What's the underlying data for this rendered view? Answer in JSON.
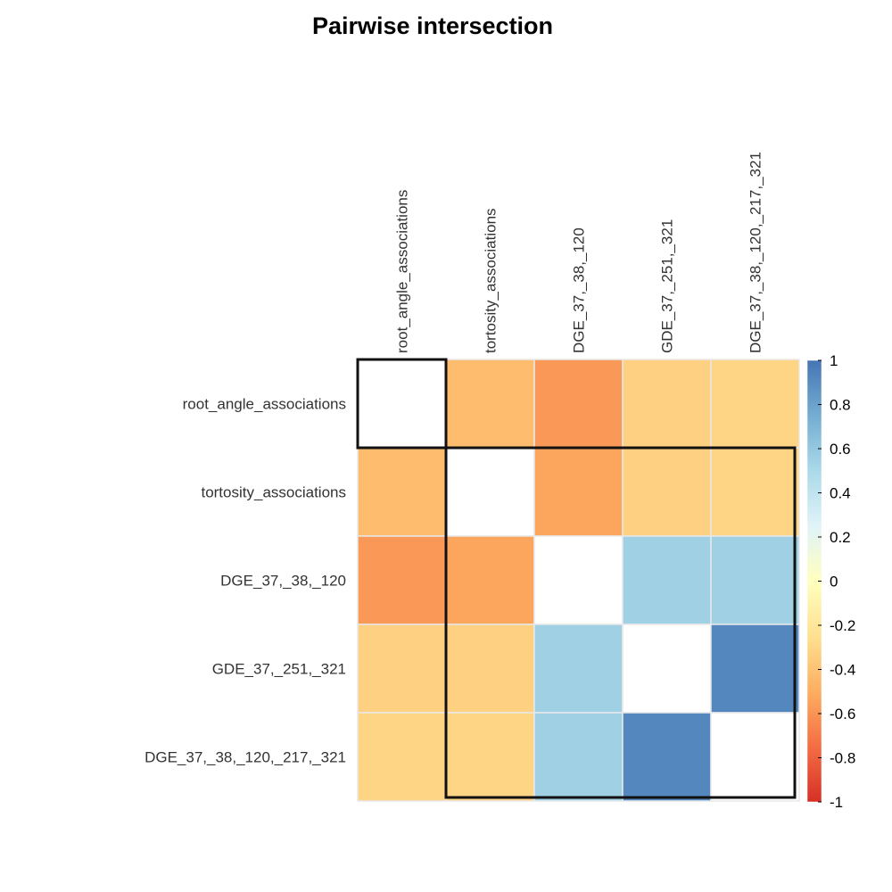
{
  "chart_data": {
    "type": "heatmap",
    "title": "Pairwise intersection",
    "labels": [
      "root_angle_associations",
      "tortosity_associations",
      "DGE_37,_38,_120",
      "GDE_37,_251,_321",
      "DGE_37,_38,_120,_217,_321"
    ],
    "matrix": [
      [
        null,
        -0.43,
        -0.58,
        -0.33,
        -0.31
      ],
      [
        -0.43,
        null,
        -0.53,
        -0.33,
        -0.31
      ],
      [
        -0.58,
        -0.53,
        null,
        0.55,
        0.55
      ],
      [
        -0.33,
        -0.33,
        0.55,
        null,
        0.92
      ],
      [
        -0.31,
        -0.31,
        0.55,
        0.92,
        null
      ]
    ],
    "diagonal": "blank",
    "colorbar": {
      "range": [
        -1,
        1
      ],
      "ticks": [
        "1",
        "0.8",
        "0.6",
        "0.4",
        "0.2",
        "0",
        "-0.2",
        "-0.4",
        "-0.6",
        "-0.8",
        "-1"
      ]
    },
    "colors": {
      "low": "#d7191c",
      "mid": "#ffffbf",
      "high": "#2b6cb0",
      "cell_border": "#e8e8e8",
      "cluster_border": "#111111"
    },
    "clusters": [
      [
        0,
        0
      ],
      [
        1,
        4
      ]
    ]
  }
}
